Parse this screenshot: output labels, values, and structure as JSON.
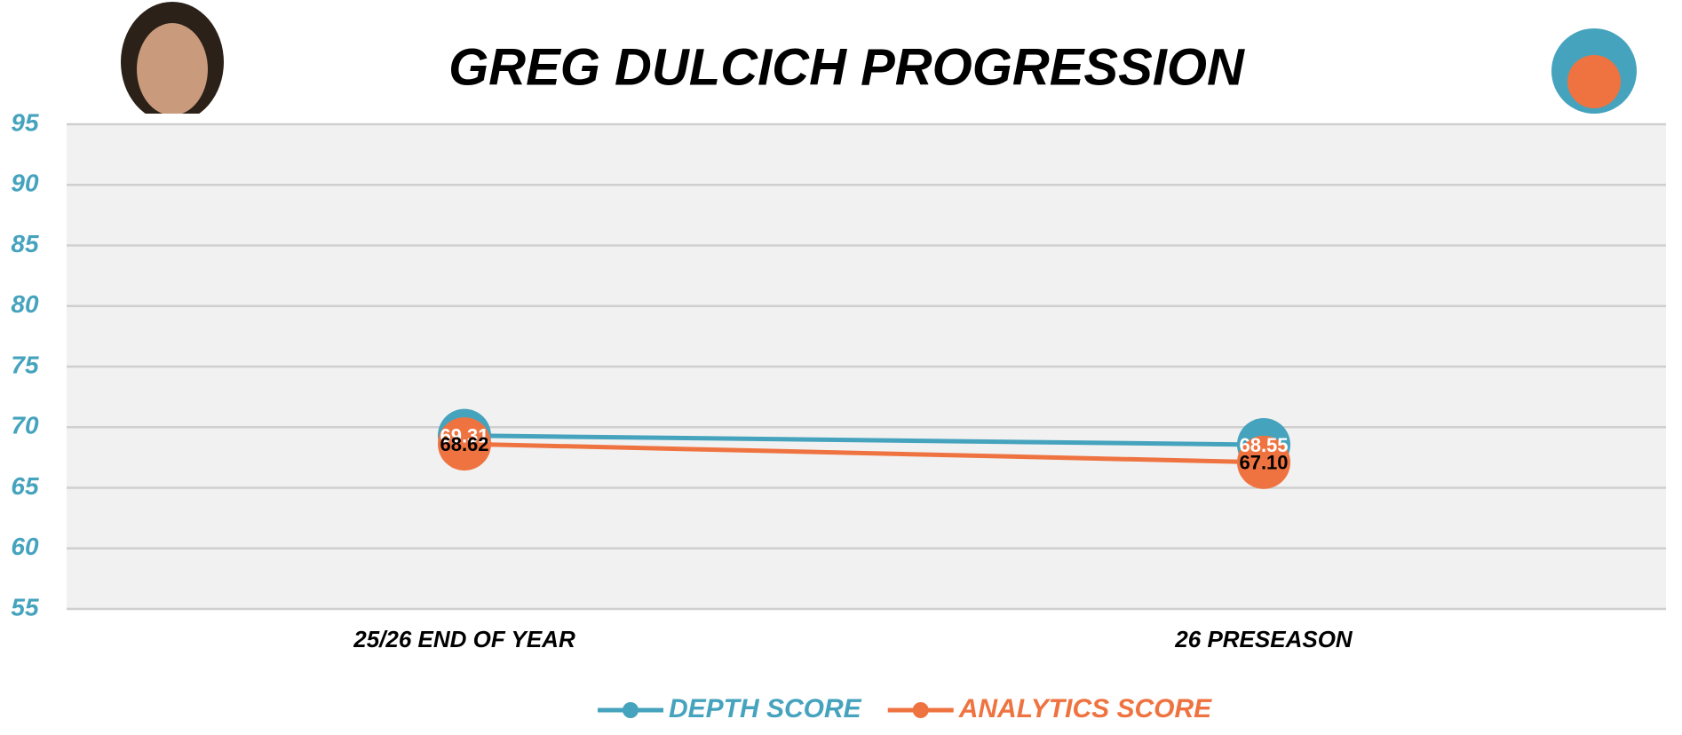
{
  "chart_data": {
    "type": "line",
    "title": "GREG DULCICH PROGRESSION",
    "categories": [
      "25/26 END OF YEAR",
      "26 PRESEASON"
    ],
    "series": [
      {
        "name": "DEPTH SCORE",
        "color": "#45a3bd",
        "values": [
          69.31,
          68.55
        ],
        "value_labels": [
          "69.31",
          "68.55"
        ]
      },
      {
        "name": "ANALYTICS SCORE",
        "color": "#ef7340",
        "values": [
          68.62,
          67.1
        ],
        "value_labels": [
          "68.62",
          "67.10"
        ]
      }
    ],
    "ylim": [
      55,
      95
    ],
    "yticks": [
      55,
      60,
      65,
      70,
      75,
      80,
      85,
      90,
      95
    ],
    "grid": true,
    "legend": "bottom"
  }
}
